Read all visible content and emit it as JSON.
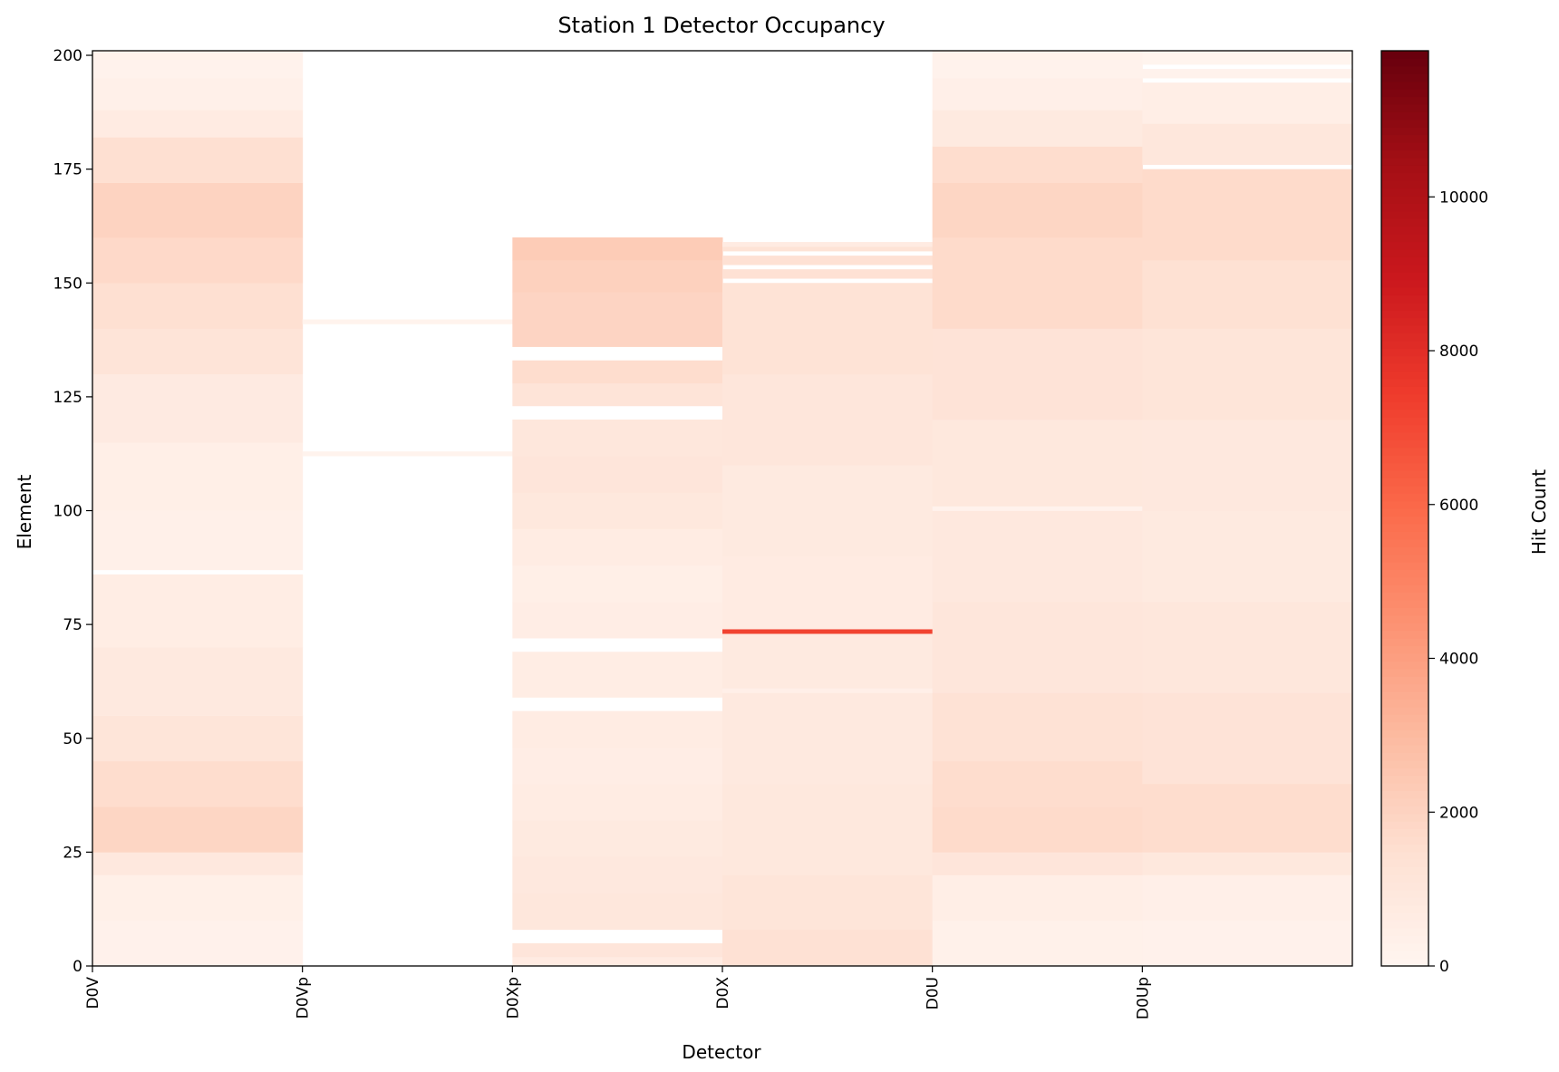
{
  "chart_data": {
    "type": "heatmap",
    "title": "Station 1 Detector Occupancy",
    "xlabel": "Detector",
    "ylabel": "Element",
    "detectors": [
      "D0V",
      "D0Vp",
      "D0Xp",
      "D0X",
      "D0U",
      "D0Up"
    ],
    "ylim": [
      0,
      201
    ],
    "yticks": [
      0,
      25,
      50,
      75,
      100,
      125,
      150,
      175,
      200
    ],
    "colormap": "Reds",
    "colorbar": {
      "label": "Hit Count",
      "min": 0,
      "max": 11900,
      "ticks": [
        0,
        2000,
        4000,
        6000,
        8000,
        10000
      ]
    },
    "columns": [
      {
        "detector": "D0V",
        "elements": 200,
        "segments": [
          {
            "from": 0,
            "to": 10,
            "value": 250
          },
          {
            "from": 10,
            "to": 20,
            "value": 380
          },
          {
            "from": 20,
            "to": 25,
            "value": 900
          },
          {
            "from": 25,
            "to": 35,
            "value": 1900
          },
          {
            "from": 35,
            "to": 45,
            "value": 1600
          },
          {
            "from": 45,
            "to": 55,
            "value": 1150
          },
          {
            "from": 55,
            "to": 70,
            "value": 850
          },
          {
            "from": 70,
            "to": 86,
            "value": 600
          },
          {
            "from": 86,
            "to": 87,
            "value": 0
          },
          {
            "from": 87,
            "to": 100,
            "value": 350
          },
          {
            "from": 100,
            "to": 115,
            "value": 450
          },
          {
            "from": 115,
            "to": 130,
            "value": 750
          },
          {
            "from": 130,
            "to": 140,
            "value": 1200
          },
          {
            "from": 140,
            "to": 150,
            "value": 1500
          },
          {
            "from": 150,
            "to": 160,
            "value": 1750
          },
          {
            "from": 160,
            "to": 172,
            "value": 2000
          },
          {
            "from": 172,
            "to": 182,
            "value": 1500
          },
          {
            "from": 182,
            "to": 188,
            "value": 700
          },
          {
            "from": 188,
            "to": 195,
            "value": 350
          },
          {
            "from": 195,
            "to": 201,
            "value": 200
          }
        ]
      },
      {
        "detector": "D0Vp",
        "elements": 200,
        "segments": [
          {
            "from": 112,
            "to": 113,
            "value": 150
          },
          {
            "from": 141,
            "to": 142,
            "value": 150
          }
        ]
      },
      {
        "detector": "D0Xp",
        "elements": 160,
        "segments": [
          {
            "from": 0,
            "to": 2,
            "value": 700
          },
          {
            "from": 2,
            "to": 5,
            "value": 1100
          },
          {
            "from": 5,
            "to": 8,
            "value": 0
          },
          {
            "from": 8,
            "to": 16,
            "value": 1000
          },
          {
            "from": 16,
            "to": 24,
            "value": 900
          },
          {
            "from": 24,
            "to": 32,
            "value": 800
          },
          {
            "from": 32,
            "to": 40,
            "value": 650
          },
          {
            "from": 40,
            "to": 48,
            "value": 550
          },
          {
            "from": 48,
            "to": 56,
            "value": 650
          },
          {
            "from": 56,
            "to": 59,
            "value": 0
          },
          {
            "from": 59,
            "to": 69,
            "value": 600
          },
          {
            "from": 69,
            "to": 72,
            "value": 0
          },
          {
            "from": 72,
            "to": 80,
            "value": 550
          },
          {
            "from": 80,
            "to": 88,
            "value": 450
          },
          {
            "from": 88,
            "to": 96,
            "value": 650
          },
          {
            "from": 96,
            "to": 104,
            "value": 950
          },
          {
            "from": 104,
            "to": 112,
            "value": 1100
          },
          {
            "from": 112,
            "to": 120,
            "value": 1000
          },
          {
            "from": 120,
            "to": 123,
            "value": 0
          },
          {
            "from": 123,
            "to": 128,
            "value": 1200
          },
          {
            "from": 128,
            "to": 133,
            "value": 1600
          },
          {
            "from": 133,
            "to": 136,
            "value": 0
          },
          {
            "from": 136,
            "to": 148,
            "value": 1950
          },
          {
            "from": 148,
            "to": 155,
            "value": 2100
          },
          {
            "from": 155,
            "to": 160,
            "value": 2300
          }
        ]
      },
      {
        "detector": "D0X",
        "elements": 160,
        "segments": [
          {
            "from": 0,
            "to": 8,
            "value": 1400
          },
          {
            "from": 8,
            "to": 20,
            "value": 1150
          },
          {
            "from": 20,
            "to": 40,
            "value": 950
          },
          {
            "from": 40,
            "to": 60,
            "value": 850
          },
          {
            "from": 60,
            "to": 61,
            "value": 400
          },
          {
            "from": 61,
            "to": 73,
            "value": 800
          },
          {
            "from": 73,
            "to": 74,
            "value": 7200
          },
          {
            "from": 74,
            "to": 90,
            "value": 700
          },
          {
            "from": 90,
            "to": 110,
            "value": 800
          },
          {
            "from": 110,
            "to": 130,
            "value": 1050
          },
          {
            "from": 130,
            "to": 150,
            "value": 1300
          },
          {
            "from": 150,
            "to": 151,
            "value": 0
          },
          {
            "from": 151,
            "to": 153,
            "value": 1400
          },
          {
            "from": 153,
            "to": 154,
            "value": 0
          },
          {
            "from": 154,
            "to": 156,
            "value": 1400
          },
          {
            "from": 156,
            "to": 157,
            "value": 0
          },
          {
            "from": 157,
            "to": 158,
            "value": 1300
          },
          {
            "from": 158,
            "to": 159,
            "value": 700
          }
        ]
      },
      {
        "detector": "D0U",
        "elements": 200,
        "segments": [
          {
            "from": 0,
            "to": 10,
            "value": 280
          },
          {
            "from": 10,
            "to": 20,
            "value": 480
          },
          {
            "from": 20,
            "to": 25,
            "value": 1100
          },
          {
            "from": 25,
            "to": 35,
            "value": 1700
          },
          {
            "from": 35,
            "to": 45,
            "value": 1600
          },
          {
            "from": 45,
            "to": 60,
            "value": 1350
          },
          {
            "from": 60,
            "to": 80,
            "value": 1050
          },
          {
            "from": 80,
            "to": 100,
            "value": 900
          },
          {
            "from": 100,
            "to": 101,
            "value": 200
          },
          {
            "from": 101,
            "to": 120,
            "value": 950
          },
          {
            "from": 120,
            "to": 140,
            "value": 1250
          },
          {
            "from": 140,
            "to": 160,
            "value": 1700
          },
          {
            "from": 160,
            "to": 172,
            "value": 1900
          },
          {
            "from": 172,
            "to": 180,
            "value": 1600
          },
          {
            "from": 180,
            "to": 188,
            "value": 800
          },
          {
            "from": 188,
            "to": 195,
            "value": 400
          },
          {
            "from": 195,
            "to": 201,
            "value": 200
          }
        ]
      },
      {
        "detector": "D0Up",
        "elements": 200,
        "segments": [
          {
            "from": 0,
            "to": 10,
            "value": 250
          },
          {
            "from": 10,
            "to": 20,
            "value": 420
          },
          {
            "from": 20,
            "to": 25,
            "value": 950
          },
          {
            "from": 25,
            "to": 40,
            "value": 1600
          },
          {
            "from": 40,
            "to": 60,
            "value": 1250
          },
          {
            "from": 60,
            "to": 80,
            "value": 1000
          },
          {
            "from": 80,
            "to": 100,
            "value": 800
          },
          {
            "from": 100,
            "to": 120,
            "value": 900
          },
          {
            "from": 120,
            "to": 140,
            "value": 1150
          },
          {
            "from": 140,
            "to": 155,
            "value": 1450
          },
          {
            "from": 155,
            "to": 175,
            "value": 1700
          },
          {
            "from": 175,
            "to": 176,
            "value": 0
          },
          {
            "from": 176,
            "to": 185,
            "value": 1000
          },
          {
            "from": 185,
            "to": 194,
            "value": 500
          },
          {
            "from": 194,
            "to": 195,
            "value": 0
          },
          {
            "from": 195,
            "to": 197,
            "value": 200
          },
          {
            "from": 197,
            "to": 198,
            "value": 0
          },
          {
            "from": 198,
            "to": 201,
            "value": 100
          }
        ]
      }
    ]
  }
}
